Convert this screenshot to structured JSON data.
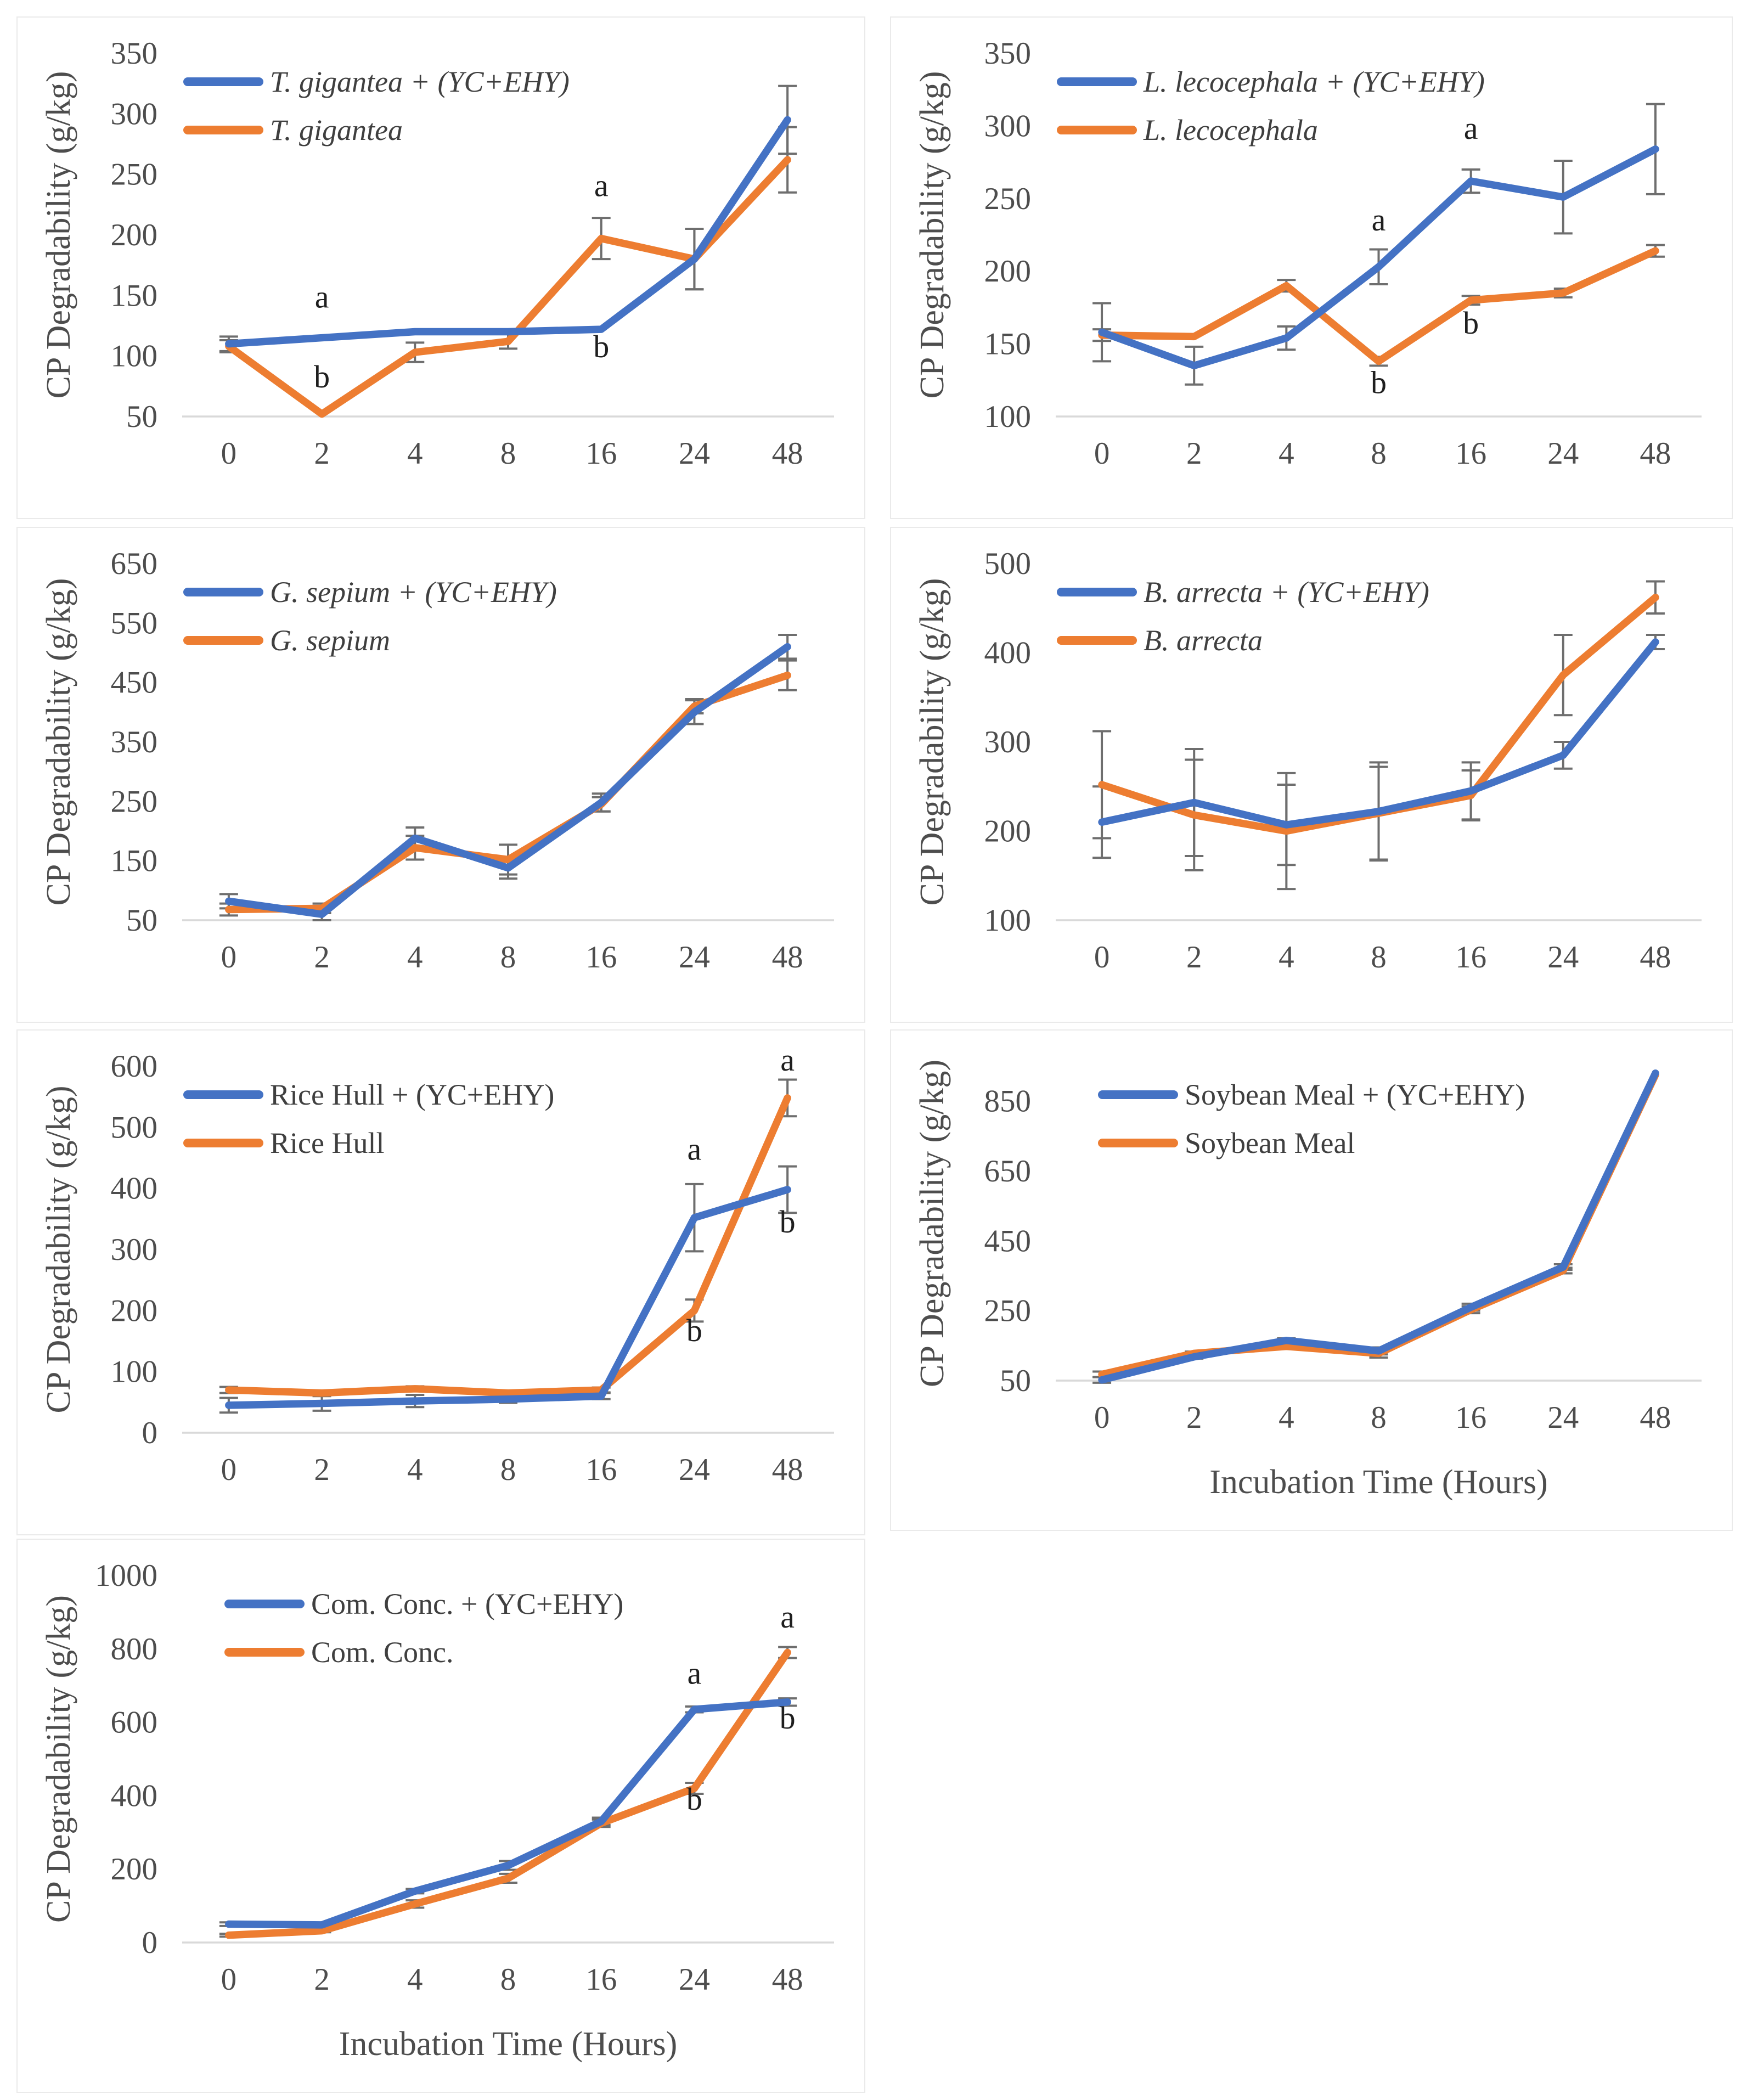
{
  "figure": {
    "y_axis_title": "CP Degradability (g/kg)",
    "x_axis_title": "Incubation Time (Hours)",
    "description": "Seven line charts of CP degradability vs incubation time, each comparing a feed with and without (YC+EHY)"
  },
  "colors": {
    "treated_line": "#4472C4",
    "control_line": "#ED7D31",
    "error_bar": "#6E6E6E",
    "axis_line": "#D9D9D9",
    "tick_text": "#4D4D4D",
    "legend_text": "#3F3F3F",
    "annotation_text": "#1F1F1F",
    "panel_border": "#EAEAEA"
  },
  "chart_data": [
    {
      "id": "t_gigantea",
      "type": "line",
      "categories": [
        0,
        2,
        4,
        8,
        16,
        24,
        48
      ],
      "ylabel": "CP Degradability (g/kg)",
      "xlabel": "",
      "ylim": [
        50,
        350
      ],
      "yticks": [
        50,
        100,
        150,
        200,
        250,
        300,
        350
      ],
      "grid": false,
      "legend_position": "top-left",
      "series": [
        {
          "name": "T. gigantea + (YC+EHY)",
          "role": "treated",
          "italic": true,
          "values": [
            110,
            115,
            120,
            120,
            122,
            180,
            295
          ],
          "errors": [
            6,
            0,
            0,
            0,
            0,
            25,
            28
          ]
        },
        {
          "name": "T. gigantea",
          "role": "control",
          "italic": true,
          "values": [
            108,
            52,
            103,
            112,
            197,
            180,
            262
          ],
          "errors": [
            5,
            0,
            8,
            6,
            17,
            25,
            27
          ]
        }
      ],
      "annotations": [
        {
          "label": "a",
          "x_index": 1,
          "y": 140
        },
        {
          "label": "b",
          "x_index": 1,
          "y": 74
        },
        {
          "label": "a",
          "x_index": 4,
          "y": 232
        },
        {
          "label": "b",
          "x_index": 4,
          "y": 99
        }
      ]
    },
    {
      "id": "l_lecocephala",
      "type": "line",
      "categories": [
        0,
        2,
        4,
        8,
        16,
        24,
        48
      ],
      "ylabel": "CP Degradability (g/kg)",
      "xlabel": "",
      "ylim": [
        100,
        350
      ],
      "yticks": [
        100,
        150,
        200,
        250,
        300,
        350
      ],
      "grid": false,
      "legend_position": "top-left",
      "series": [
        {
          "name": "L. lecocephala + (YC+EHY)",
          "role": "treated",
          "italic": true,
          "values": [
            158,
            135,
            154,
            203,
            262,
            251,
            284
          ],
          "errors": [
            20,
            13,
            8,
            12,
            8,
            25,
            31
          ]
        },
        {
          "name": "L. lecocephala",
          "role": "control",
          "italic": true,
          "values": [
            156,
            155,
            190,
            138,
            180,
            185,
            214
          ],
          "errors": [
            4,
            0,
            4,
            3,
            3,
            3,
            4
          ]
        }
      ],
      "annotations": [
        {
          "label": "a",
          "x_index": 3,
          "y": 228
        },
        {
          "label": "b",
          "x_index": 3,
          "y": 116
        },
        {
          "label": "a",
          "x_index": 4,
          "y": 291
        },
        {
          "label": "b",
          "x_index": 4,
          "y": 157
        }
      ]
    },
    {
      "id": "g_sepium",
      "type": "line",
      "categories": [
        0,
        2,
        4,
        8,
        16,
        24,
        48
      ],
      "ylabel": "CP Degradability (g/kg)",
      "xlabel": "",
      "ylim": [
        50,
        650
      ],
      "yticks": [
        50,
        150,
        250,
        350,
        450,
        550,
        650
      ],
      "grid": false,
      "legend_position": "top-left",
      "series": [
        {
          "name": "G. sepium + (YC+EHY)",
          "role": "treated",
          "italic": true,
          "values": [
            82,
            60,
            188,
            138,
            248,
            400,
            510
          ],
          "errors": [
            12,
            10,
            18,
            18,
            15,
            20,
            20
          ]
        },
        {
          "name": "G. sepium",
          "role": "control",
          "italic": true,
          "values": [
            68,
            70,
            172,
            152,
            245,
            410,
            462
          ],
          "errors": [
            10,
            8,
            20,
            25,
            12,
            12,
            25
          ]
        }
      ],
      "annotations": []
    },
    {
      "id": "b_arrecta",
      "type": "line",
      "categories": [
        0,
        2,
        4,
        8,
        16,
        24,
        48
      ],
      "ylabel": "CP Degradability (g/kg)",
      "xlabel": "",
      "ylim": [
        100,
        500
      ],
      "yticks": [
        100,
        200,
        300,
        400,
        500
      ],
      "grid": false,
      "legend_position": "top-left",
      "series": [
        {
          "name": "B. arrecta + (YC+EHY)",
          "role": "treated",
          "italic": true,
          "values": [
            210,
            232,
            207,
            222,
            245,
            285,
            412
          ],
          "errors": [
            40,
            60,
            45,
            55,
            32,
            15,
            8
          ]
        },
        {
          "name": "B. arrecta",
          "role": "control",
          "italic": true,
          "values": [
            252,
            218,
            200,
            220,
            240,
            375,
            462
          ],
          "errors": [
            60,
            62,
            65,
            52,
            28,
            45,
            18
          ]
        }
      ],
      "annotations": []
    },
    {
      "id": "rice_hull",
      "type": "line",
      "categories": [
        0,
        2,
        4,
        8,
        16,
        24,
        48
      ],
      "ylabel": "CP Degradability (g/kg)",
      "xlabel": "",
      "ylim": [
        0,
        600
      ],
      "yticks": [
        0,
        100,
        200,
        300,
        400,
        500,
        600
      ],
      "grid": false,
      "legend_position": "top-left",
      "series": [
        {
          "name": "Rice Hull + (YC+EHY)",
          "role": "treated",
          "italic": false,
          "values": [
            45,
            48,
            52,
            55,
            60,
            352,
            398
          ],
          "errors": [
            12,
            12,
            10,
            6,
            5,
            55,
            38
          ]
        },
        {
          "name": "Rice Hull",
          "role": "control",
          "italic": false,
          "values": [
            70,
            65,
            72,
            65,
            70,
            200,
            548
          ],
          "errors": [
            5,
            4,
            4,
            4,
            4,
            18,
            30
          ]
        }
      ],
      "annotations": [
        {
          "label": "a",
          "x_index": 5,
          "y": 447
        },
        {
          "label": "b",
          "x_index": 5,
          "y": 150
        },
        {
          "label": "a",
          "x_index": 6,
          "y": 593
        },
        {
          "label": "b",
          "x_index": 6,
          "y": 328
        }
      ]
    },
    {
      "id": "soybean_meal",
      "type": "line",
      "categories": [
        0,
        2,
        4,
        8,
        16,
        24,
        48
      ],
      "ylabel": "CP Degradability (g/kg)",
      "xlabel": "Incubation Time (Hours)",
      "ylim": [
        50,
        950
      ],
      "yticks": [
        50,
        250,
        450,
        650,
        850
      ],
      "grid": false,
      "legend_position": "top-left",
      "series": [
        {
          "name": "Soybean Meal + (YC+EHY)",
          "role": "treated",
          "italic": false,
          "values": [
            52,
            118,
            165,
            135,
            260,
            375,
            930
          ],
          "errors": [
            8,
            5,
            6,
            10,
            10,
            8,
            0
          ]
        },
        {
          "name": "Soybean Meal",
          "role": "control",
          "italic": false,
          "values": [
            68,
            128,
            148,
            128,
            253,
            365,
            925
          ],
          "errors": [
            8,
            5,
            6,
            12,
            10,
            8,
            0
          ]
        }
      ],
      "annotations": []
    },
    {
      "id": "com_conc",
      "type": "line",
      "categories": [
        0,
        2,
        4,
        8,
        16,
        24,
        48
      ],
      "ylabel": "CP Degradability (g/kg)",
      "xlabel": "Incubation Time (Hours)",
      "ylim": [
        0,
        1000
      ],
      "yticks": [
        0,
        200,
        400,
        600,
        800,
        1000
      ],
      "grid": false,
      "legend_position": "top-left",
      "series": [
        {
          "name": "Com. Conc. + (YC+EHY)",
          "role": "treated",
          "italic": false,
          "values": [
            50,
            48,
            140,
            210,
            330,
            635,
            655
          ],
          "errors": [
            5,
            4,
            6,
            12,
            10,
            8,
            10
          ]
        },
        {
          "name": "Com. Conc.",
          "role": "control",
          "italic": false,
          "values": [
            20,
            32,
            105,
            175,
            325,
            420,
            790
          ],
          "errors": [
            4,
            4,
            10,
            12,
            10,
            15,
            15
          ]
        }
      ],
      "annotations": [
        {
          "label": "a",
          "x_index": 5,
          "y": 705
        },
        {
          "label": "b",
          "x_index": 5,
          "y": 362
        },
        {
          "label": "a",
          "x_index": 6,
          "y": 858
        },
        {
          "label": "b",
          "x_index": 6,
          "y": 583
        }
      ]
    }
  ]
}
